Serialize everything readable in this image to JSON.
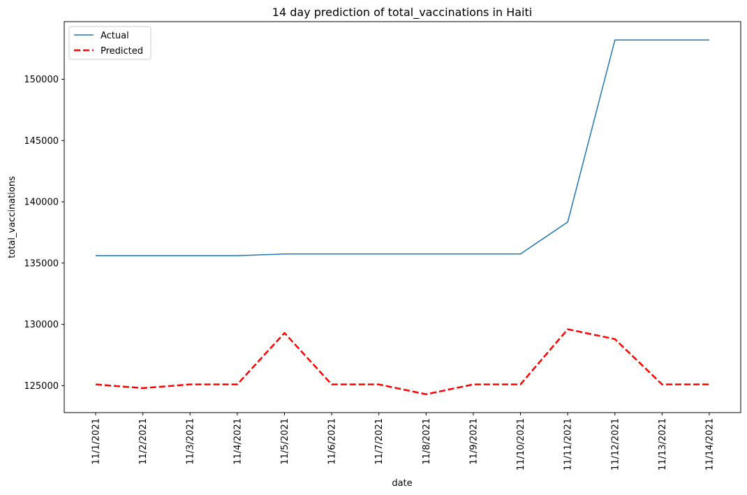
{
  "chart_data": {
    "type": "line",
    "title": "14 day prediction of total_vaccinations in Haiti",
    "xlabel": "date",
    "ylabel": "total_vaccinations",
    "categories": [
      "11/1/2021",
      "11/2/2021",
      "11/3/2021",
      "11/4/2021",
      "11/5/2021",
      "11/6/2021",
      "11/7/2021",
      "11/8/2021",
      "11/9/2021",
      "11/10/2021",
      "11/11/2021",
      "11/12/2021",
      "11/13/2021",
      "11/14/2021"
    ],
    "yticks": [
      125000,
      130000,
      135000,
      140000,
      145000,
      150000
    ],
    "ylim": [
      122800,
      154700
    ],
    "grid": false,
    "legend_position": "top-left",
    "series": [
      {
        "name": "Actual",
        "color": "#1f77b4",
        "style": "solid",
        "values": [
          135600,
          135600,
          135600,
          135600,
          135750,
          135750,
          135750,
          135750,
          135750,
          135750,
          138350,
          153200,
          153200,
          153200
        ]
      },
      {
        "name": "Predicted",
        "color": "#ff0000",
        "style": "dashed",
        "values": [
          125100,
          124800,
          125100,
          125100,
          129300,
          125100,
          125100,
          124300,
          125100,
          125100,
          129600,
          128800,
          125100,
          125100
        ]
      }
    ]
  }
}
